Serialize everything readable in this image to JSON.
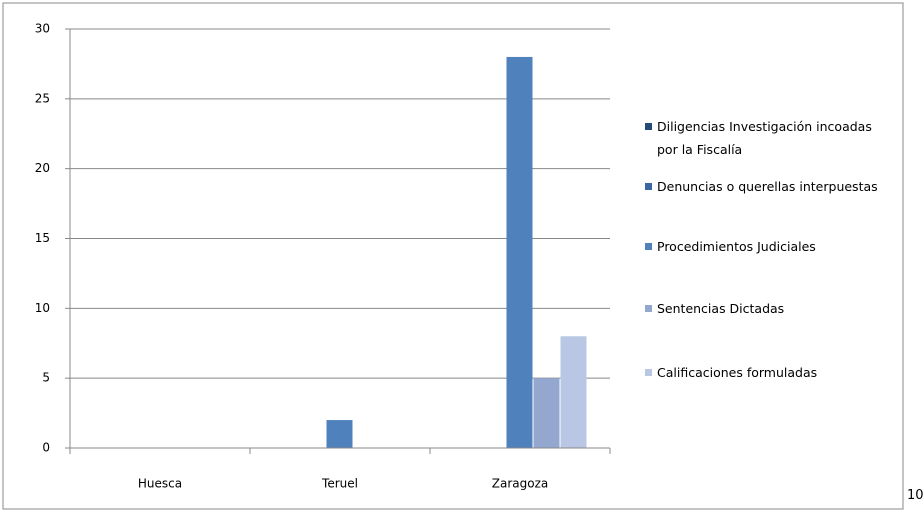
{
  "chart_data": {
    "type": "bar",
    "categories": [
      "Huesca",
      "Teruel",
      "Zaragoza"
    ],
    "series": [
      {
        "name": "Diligencias Investigación incoadas por la Fiscalía",
        "color": "#254a7a",
        "values": [
          0,
          0,
          0
        ]
      },
      {
        "name": "Denuncias o querellas interpuestas",
        "color": "#3b66a3",
        "values": [
          0,
          0,
          0
        ]
      },
      {
        "name": "Procedimientos Judiciales",
        "color": "#4f81bd",
        "values": [
          0,
          2,
          28
        ]
      },
      {
        "name": "Sentencias Dictadas",
        "color": "#93a7cf",
        "values": [
          0,
          0,
          5
        ]
      },
      {
        "name": "Calificaciones formuladas",
        "color": "#b9c7e4",
        "values": [
          0,
          0,
          8
        ]
      }
    ],
    "ylim": [
      0,
      30
    ],
    "yticks": [
      0,
      5,
      10,
      15,
      20,
      25,
      30
    ],
    "grid": true,
    "legend": "right"
  },
  "page_number": "10"
}
